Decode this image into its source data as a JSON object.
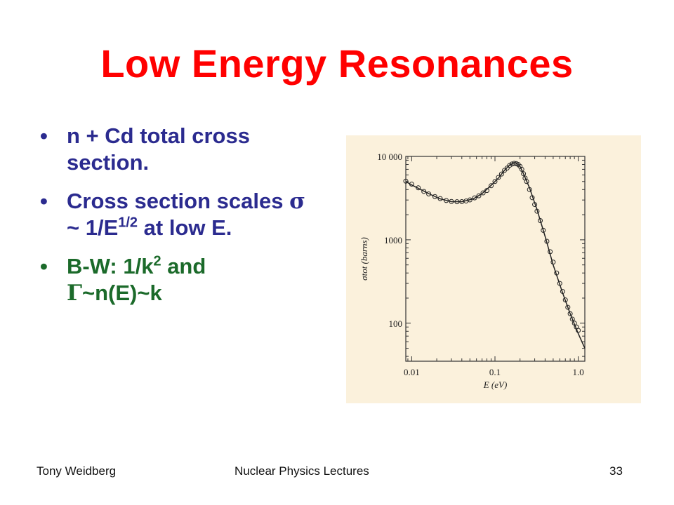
{
  "slide": {
    "title": "Low Energy Resonances",
    "bullets": [
      {
        "text": "n + Cd total cross section."
      },
      {
        "pre": "Cross section scales ",
        "sym": "σ",
        "mid": " ~ 1/E",
        "sup": "1/2",
        "post": " at low E."
      },
      {
        "pre": "B-W: 1/k",
        "sup": "2",
        "post": " and",
        "sym2": "Γ",
        "post2": "~n(E)~k"
      }
    ],
    "footer": {
      "author": "Tony Weidberg",
      "course": "Nuclear Physics Lectures",
      "page": "33"
    }
  },
  "chart_data": {
    "type": "line",
    "xlabel": "E (eV)",
    "ylabel": "σtot (barns)",
    "x_scale": "log",
    "y_scale": "log",
    "xlim": [
      0.0085,
      1.2
    ],
    "ylim": [
      35,
      10000
    ],
    "x_ticks": [
      {
        "value": 0.01,
        "label": "0.01"
      },
      {
        "value": 0.1,
        "label": "0.1"
      },
      {
        "value": 1.0,
        "label": "1.0"
      }
    ],
    "y_ticks": [
      {
        "value": 100,
        "label": "100"
      },
      {
        "value": 1000,
        "label": "1000"
      },
      {
        "value": 10000,
        "label": "10 000"
      }
    ],
    "series": [
      {
        "kind": "curve",
        "x": [
          0.0085,
          0.01,
          0.013,
          0.017,
          0.022,
          0.03,
          0.04,
          0.055,
          0.07,
          0.09,
          0.11,
          0.13,
          0.15,
          0.17,
          0.18,
          0.2,
          0.22,
          0.26,
          0.32,
          0.4,
          0.5,
          0.65,
          0.8,
          1.0,
          1.2
        ],
        "y": [
          5000,
          4550,
          3980,
          3480,
          3100,
          2870,
          2860,
          3100,
          3580,
          4500,
          5500,
          6800,
          7900,
          8400,
          8300,
          7600,
          6200,
          4200,
          2300,
          1100,
          500,
          230,
          130,
          75,
          50
        ]
      },
      {
        "kind": "points",
        "x": [
          0.0085,
          0.01,
          0.012,
          0.014,
          0.016,
          0.019,
          0.022,
          0.026,
          0.03,
          0.035,
          0.04,
          0.045,
          0.05,
          0.057,
          0.064,
          0.072,
          0.08,
          0.09,
          0.1,
          0.11,
          0.12,
          0.13,
          0.14,
          0.15,
          0.16,
          0.17,
          0.18,
          0.19,
          0.2,
          0.21,
          0.22,
          0.23,
          0.24,
          0.26,
          0.28,
          0.3,
          0.32,
          0.35,
          0.38,
          0.42,
          0.46,
          0.5,
          0.55,
          0.6,
          0.65,
          0.7,
          0.75,
          0.8,
          0.85,
          0.9,
          0.95,
          1.0
        ],
        "y": [
          5050,
          4650,
          4200,
          3800,
          3550,
          3300,
          3120,
          2960,
          2880,
          2860,
          2870,
          2920,
          3010,
          3180,
          3370,
          3650,
          3900,
          4450,
          5000,
          5600,
          6150,
          6800,
          7250,
          7800,
          8100,
          8250,
          8200,
          8000,
          7600,
          7000,
          6200,
          5500,
          5000,
          4000,
          3200,
          2650,
          2200,
          1700,
          1300,
          960,
          720,
          540,
          400,
          300,
          240,
          190,
          155,
          130,
          112,
          100,
          90,
          82
        ]
      }
    ]
  }
}
